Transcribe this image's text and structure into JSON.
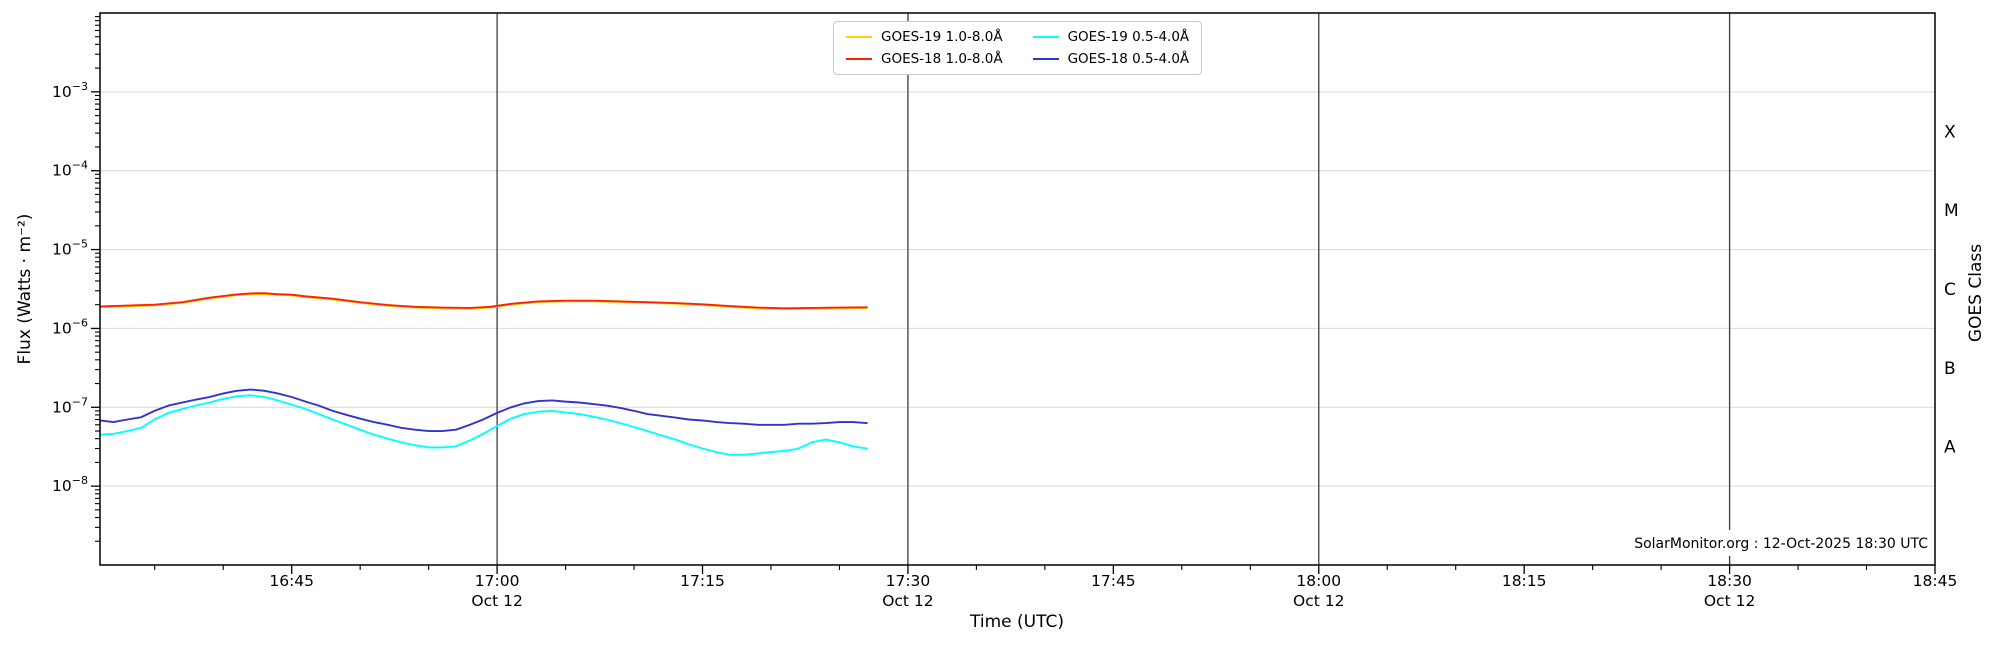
{
  "chart_data": {
    "type": "line",
    "title": "",
    "xlabel": "Time (UTC)",
    "ylabel_left": "Flux (Watts · m⁻²)",
    "ylabel_right": "GOES Class",
    "x_domain_hours": [
      16.5167,
      18.75
    ],
    "y_log_domain": [
      -9,
      -2
    ],
    "grid": "horizontal decades",
    "legend_position": "top-center, 2 columns",
    "x_ticks": [
      {
        "hours": 16.75,
        "label": "16:45",
        "sub": ""
      },
      {
        "hours": 17.0,
        "label": "17:00",
        "sub": "Oct 12"
      },
      {
        "hours": 17.25,
        "label": "17:15",
        "sub": ""
      },
      {
        "hours": 17.5,
        "label": "17:30",
        "sub": "Oct 12"
      },
      {
        "hours": 17.75,
        "label": "17:45",
        "sub": ""
      },
      {
        "hours": 18.0,
        "label": "18:00",
        "sub": "Oct 12"
      },
      {
        "hours": 18.25,
        "label": "18:15",
        "sub": ""
      },
      {
        "hours": 18.5,
        "label": "18:30",
        "sub": "Oct 12"
      },
      {
        "hours": 18.75,
        "label": "18:45",
        "sub": ""
      }
    ],
    "y_ticks": [
      {
        "exp": -8,
        "label": "10⁻⁸"
      },
      {
        "exp": -7,
        "label": "10⁻⁷"
      },
      {
        "exp": -6,
        "label": "10⁻⁶"
      },
      {
        "exp": -5,
        "label": "10⁻⁵"
      },
      {
        "exp": -4,
        "label": "10⁻⁴"
      },
      {
        "exp": -3,
        "label": "10⁻³"
      }
    ],
    "right_labels": [
      {
        "label": "A",
        "log_center": -7.5
      },
      {
        "label": "B",
        "log_center": -6.5
      },
      {
        "label": "C",
        "log_center": -5.5
      },
      {
        "label": "M",
        "log_center": -4.5
      },
      {
        "label": "X",
        "log_center": -3.5
      }
    ],
    "hour_lines": [
      17.0,
      17.5,
      18.0,
      18.5
    ],
    "watermark": "SolarMonitor.org : 12-Oct-2025 18:30 UTC",
    "series": [
      {
        "name": "GOES-19 1.0-8.0Å",
        "color": "#ffd400",
        "points": [
          [
            16.517,
            1.86e-06
          ],
          [
            16.55,
            1.91e-06
          ],
          [
            16.583,
            1.96e-06
          ],
          [
            16.617,
            2.11e-06
          ],
          [
            16.65,
            2.4e-06
          ],
          [
            16.683,
            2.65e-06
          ],
          [
            16.7,
            2.72e-06
          ],
          [
            16.717,
            2.74e-06
          ],
          [
            16.733,
            2.67e-06
          ],
          [
            16.75,
            2.63e-06
          ],
          [
            16.767,
            2.5e-06
          ],
          [
            16.8,
            2.33e-06
          ],
          [
            16.833,
            2.11e-06
          ],
          [
            16.867,
            1.94e-06
          ],
          [
            16.9,
            1.84e-06
          ],
          [
            16.933,
            1.8e-06
          ],
          [
            16.967,
            1.78e-06
          ],
          [
            16.992,
            1.84e-06
          ],
          [
            17.017,
            2.01e-06
          ],
          [
            17.05,
            2.16e-06
          ],
          [
            17.083,
            2.21e-06
          ],
          [
            17.117,
            2.21e-06
          ],
          [
            17.15,
            2.16e-06
          ],
          [
            17.183,
            2.11e-06
          ],
          [
            17.217,
            2.06e-06
          ],
          [
            17.25,
            1.98e-06
          ],
          [
            17.283,
            1.88e-06
          ],
          [
            17.317,
            1.8e-06
          ],
          [
            17.35,
            1.76e-06
          ],
          [
            17.383,
            1.78e-06
          ],
          [
            17.417,
            1.8e-06
          ],
          [
            17.45,
            1.81e-06
          ]
        ]
      },
      {
        "name": "GOES-18 1.0-8.0Å",
        "color": "#ff2200",
        "points": [
          [
            16.517,
            1.9e-06
          ],
          [
            16.55,
            1.95e-06
          ],
          [
            16.583,
            2e-06
          ],
          [
            16.617,
            2.15e-06
          ],
          [
            16.65,
            2.45e-06
          ],
          [
            16.683,
            2.7e-06
          ],
          [
            16.7,
            2.78e-06
          ],
          [
            16.717,
            2.8e-06
          ],
          [
            16.733,
            2.72e-06
          ],
          [
            16.75,
            2.68e-06
          ],
          [
            16.767,
            2.55e-06
          ],
          [
            16.8,
            2.38e-06
          ],
          [
            16.833,
            2.15e-06
          ],
          [
            16.867,
            1.98e-06
          ],
          [
            16.9,
            1.88e-06
          ],
          [
            16.933,
            1.84e-06
          ],
          [
            16.967,
            1.82e-06
          ],
          [
            16.992,
            1.88e-06
          ],
          [
            17.017,
            2.05e-06
          ],
          [
            17.05,
            2.2e-06
          ],
          [
            17.083,
            2.25e-06
          ],
          [
            17.117,
            2.25e-06
          ],
          [
            17.15,
            2.2e-06
          ],
          [
            17.183,
            2.15e-06
          ],
          [
            17.217,
            2.1e-06
          ],
          [
            17.25,
            2.02e-06
          ],
          [
            17.283,
            1.92e-06
          ],
          [
            17.317,
            1.84e-06
          ],
          [
            17.35,
            1.8e-06
          ],
          [
            17.383,
            1.82e-06
          ],
          [
            17.417,
            1.84e-06
          ],
          [
            17.45,
            1.85e-06
          ]
        ]
      },
      {
        "name": "GOES-19 0.5-4.0Å",
        "color": "#00ffff",
        "points": [
          [
            16.517,
            4.5e-08
          ],
          [
            16.533,
            4.6e-08
          ],
          [
            16.55,
            5e-08
          ],
          [
            16.567,
            5.5e-08
          ],
          [
            16.583,
            7e-08
          ],
          [
            16.6,
            8.5e-08
          ],
          [
            16.617,
            9.5e-08
          ],
          [
            16.633,
            1.05e-07
          ],
          [
            16.65,
            1.15e-07
          ],
          [
            16.667,
            1.28e-07
          ],
          [
            16.683,
            1.38e-07
          ],
          [
            16.7,
            1.42e-07
          ],
          [
            16.717,
            1.35e-07
          ],
          [
            16.733,
            1.22e-07
          ],
          [
            16.75,
            1.08e-07
          ],
          [
            16.767,
            9.5e-08
          ],
          [
            16.783,
            8.2e-08
          ],
          [
            16.8,
            7e-08
          ],
          [
            16.817,
            6e-08
          ],
          [
            16.833,
            5.2e-08
          ],
          [
            16.85,
            4.5e-08
          ],
          [
            16.867,
            4e-08
          ],
          [
            16.883,
            3.6e-08
          ],
          [
            16.9,
            3.3e-08
          ],
          [
            16.917,
            3.1e-08
          ],
          [
            16.933,
            3.1e-08
          ],
          [
            16.95,
            3.2e-08
          ],
          [
            16.967,
            3.8e-08
          ],
          [
            16.983,
            4.6e-08
          ],
          [
            17.0,
            5.8e-08
          ],
          [
            17.017,
            7.2e-08
          ],
          [
            17.033,
            8.2e-08
          ],
          [
            17.05,
            8.8e-08
          ],
          [
            17.067,
            9e-08
          ],
          [
            17.083,
            8.6e-08
          ],
          [
            17.1,
            8.2e-08
          ],
          [
            17.117,
            7.6e-08
          ],
          [
            17.133,
            7e-08
          ],
          [
            17.15,
            6.3e-08
          ],
          [
            17.167,
            5.6e-08
          ],
          [
            17.183,
            5e-08
          ],
          [
            17.2,
            4.4e-08
          ],
          [
            17.217,
            3.9e-08
          ],
          [
            17.233,
            3.4e-08
          ],
          [
            17.25,
            3e-08
          ],
          [
            17.267,
            2.7e-08
          ],
          [
            17.283,
            2.5e-08
          ],
          [
            17.3,
            2.5e-08
          ],
          [
            17.317,
            2.6e-08
          ],
          [
            17.333,
            2.7e-08
          ],
          [
            17.35,
            2.8e-08
          ],
          [
            17.367,
            3e-08
          ],
          [
            17.383,
            3.6e-08
          ],
          [
            17.4,
            3.9e-08
          ],
          [
            17.417,
            3.6e-08
          ],
          [
            17.433,
            3.2e-08
          ],
          [
            17.45,
            3e-08
          ]
        ]
      },
      {
        "name": "GOES-18 0.5-4.0Å",
        "color": "#3333cc",
        "points": [
          [
            16.517,
            6.8e-08
          ],
          [
            16.533,
            6.5e-08
          ],
          [
            16.55,
            7e-08
          ],
          [
            16.567,
            7.5e-08
          ],
          [
            16.583,
            9e-08
          ],
          [
            16.6,
            1.05e-07
          ],
          [
            16.617,
            1.15e-07
          ],
          [
            16.633,
            1.25e-07
          ],
          [
            16.65,
            1.35e-07
          ],
          [
            16.667,
            1.5e-07
          ],
          [
            16.683,
            1.62e-07
          ],
          [
            16.7,
            1.68e-07
          ],
          [
            16.717,
            1.62e-07
          ],
          [
            16.733,
            1.5e-07
          ],
          [
            16.75,
            1.35e-07
          ],
          [
            16.767,
            1.18e-07
          ],
          [
            16.783,
            1.05e-07
          ],
          [
            16.8,
            9e-08
          ],
          [
            16.817,
            8e-08
          ],
          [
            16.833,
            7.2e-08
          ],
          [
            16.85,
            6.5e-08
          ],
          [
            16.867,
            6e-08
          ],
          [
            16.883,
            5.5e-08
          ],
          [
            16.9,
            5.2e-08
          ],
          [
            16.917,
            5e-08
          ],
          [
            16.933,
            5e-08
          ],
          [
            16.95,
            5.2e-08
          ],
          [
            16.967,
            6e-08
          ],
          [
            16.983,
            7e-08
          ],
          [
            17.0,
            8.5e-08
          ],
          [
            17.017,
            1e-07
          ],
          [
            17.033,
            1.12e-07
          ],
          [
            17.05,
            1.2e-07
          ],
          [
            17.067,
            1.22e-07
          ],
          [
            17.083,
            1.18e-07
          ],
          [
            17.1,
            1.15e-07
          ],
          [
            17.117,
            1.1e-07
          ],
          [
            17.133,
            1.05e-07
          ],
          [
            17.15,
            9.8e-08
          ],
          [
            17.167,
            9e-08
          ],
          [
            17.183,
            8.2e-08
          ],
          [
            17.2,
            7.8e-08
          ],
          [
            17.217,
            7.4e-08
          ],
          [
            17.233,
            7e-08
          ],
          [
            17.25,
            6.8e-08
          ],
          [
            17.267,
            6.5e-08
          ],
          [
            17.283,
            6.3e-08
          ],
          [
            17.3,
            6.2e-08
          ],
          [
            17.317,
            6e-08
          ],
          [
            17.333,
            6e-08
          ],
          [
            17.35,
            6e-08
          ],
          [
            17.367,
            6.2e-08
          ],
          [
            17.383,
            6.2e-08
          ],
          [
            17.4,
            6.3e-08
          ],
          [
            17.417,
            6.5e-08
          ],
          [
            17.433,
            6.5e-08
          ],
          [
            17.45,
            6.3e-08
          ]
        ]
      }
    ]
  }
}
